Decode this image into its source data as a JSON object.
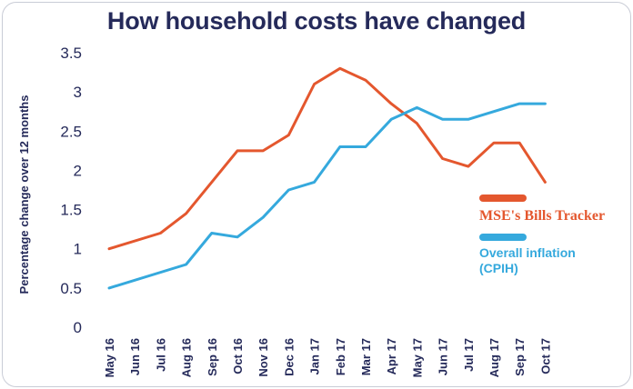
{
  "chart_data": {
    "type": "line",
    "title": "How household costs have changed",
    "ylabel": "Percentage change over 12 months",
    "xlabel": "",
    "ylim": [
      0,
      3.5
    ],
    "yticks": [
      "0",
      "0.5",
      "1",
      "1.5",
      "2",
      "2.5",
      "3",
      "3.5"
    ],
    "categories": [
      "May 16",
      "Jun 16",
      "Jul 16",
      "Aug 16",
      "Sep 16",
      "Oct 16",
      "Nov 16",
      "Dec 16",
      "Jan 17",
      "Feb 17",
      "Mar 17",
      "Apr 17",
      "May 17",
      "Jun 17",
      "Jul 17",
      "Aug 17",
      "Sep 17",
      "Oct 17"
    ],
    "grid": false,
    "legend_position": "right",
    "series": [
      {
        "name": "MSE's Bills Tracker",
        "color": "#e4572e",
        "points": [
          [
            "May 16",
            1.0
          ],
          [
            "Jul 16",
            1.2
          ],
          [
            "Aug 16",
            1.45
          ],
          [
            "Oct 16",
            2.25
          ],
          [
            "Nov 16",
            2.25
          ],
          [
            "Dec 16",
            2.45
          ],
          [
            "Jan 17",
            3.1
          ],
          [
            "Feb 17",
            3.3
          ],
          [
            "Mar 17",
            3.15
          ],
          [
            "Apr 17",
            2.85
          ],
          [
            "May 17",
            2.6
          ],
          [
            "Jun 17",
            2.15
          ],
          [
            "Jul 17",
            2.05
          ],
          [
            "Aug 17",
            2.35
          ],
          [
            "Sep 17",
            2.35
          ],
          [
            "Oct 17",
            1.85
          ]
        ]
      },
      {
        "name": "Overall inflation\n(CPIH)",
        "color": "#35a9dd",
        "points": [
          [
            "May 16",
            0.5
          ],
          [
            "Aug 16",
            0.8
          ],
          [
            "Sep 16",
            1.2
          ],
          [
            "Oct 16",
            1.15
          ],
          [
            "Nov 16",
            1.4
          ],
          [
            "Dec 16",
            1.75
          ],
          [
            "Jan 17",
            1.85
          ],
          [
            "Feb 17",
            2.3
          ],
          [
            "Mar 17",
            2.3
          ],
          [
            "Apr 17",
            2.65
          ],
          [
            "May 17",
            2.8
          ],
          [
            "Jun 17",
            2.65
          ],
          [
            "Jul 17",
            2.65
          ],
          [
            "Aug 17",
            2.75
          ],
          [
            "Sep 17",
            2.85
          ],
          [
            "Oct 17",
            2.85
          ]
        ]
      }
    ]
  }
}
